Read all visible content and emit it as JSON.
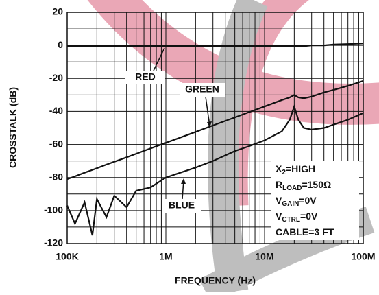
{
  "chart_data": {
    "type": "line",
    "xlabel": "FREQUENCY (Hz)",
    "ylabel": "CROSSTALK (dB)",
    "log_x": true,
    "grid": true,
    "xlim": [
      100000,
      100000000
    ],
    "xticks": [
      {
        "value": 100000,
        "label": "100K"
      },
      {
        "value": 1000000,
        "label": "1M"
      },
      {
        "value": 10000000,
        "label": "10M"
      },
      {
        "value": 100000000,
        "label": "100M"
      }
    ],
    "ylim": [
      -120,
      20
    ],
    "yticks": [
      -120,
      -100,
      -80,
      -60,
      -40,
      -20,
      0,
      20
    ],
    "x": [
      100000,
      120000,
      150000,
      180000,
      200000,
      250000,
      300000,
      400000,
      500000,
      700000,
      1000000,
      2000000,
      3000000,
      5000000,
      7000000,
      10000000,
      15000000,
      18000000,
      20000000,
      22000000,
      25000000,
      30000000,
      40000000,
      50000000,
      70000000,
      100000000
    ],
    "series": [
      {
        "name": "RED",
        "color": "#111111",
        "values": [
          -0.5,
          -0.5,
          -0.5,
          -0.5,
          -0.5,
          -0.5,
          -0.5,
          -0.5,
          -0.5,
          -0.5,
          -0.5,
          -0.5,
          -0.5,
          -0.5,
          -0.5,
          -0.5,
          -0.5,
          -0.5,
          -0.5,
          -0.5,
          -0.5,
          0,
          0,
          0.5,
          0.8,
          1.2
        ]
      },
      {
        "name": "GREEN",
        "color": "#111111",
        "values": [
          -81,
          -79.3,
          -77.1,
          -75.4,
          -74.4,
          -72.2,
          -70.5,
          -67.8,
          -65.6,
          -62.4,
          -59,
          -52.4,
          -48.5,
          -43.6,
          -40.4,
          -37,
          -33.1,
          -31.5,
          -30,
          -31.5,
          -32,
          -31,
          -28.5,
          -27,
          -24.5,
          -21.5
        ]
      },
      {
        "name": "BLUE",
        "color": "#111111",
        "values": [
          -97,
          -108,
          -95,
          -115,
          -93,
          -104,
          -91,
          -98,
          -88,
          -86,
          -80,
          -74,
          -70,
          -64,
          -61,
          -57.5,
          -52,
          -45,
          -37,
          -45,
          -50,
          -51,
          -50,
          -48,
          -45,
          -41
        ]
      }
    ],
    "conditions": [
      {
        "main": "X",
        "sub": "2",
        "rest": "=HIGH"
      },
      {
        "main": "R",
        "sub": "LOAD",
        "rest": "=150Ω"
      },
      {
        "main": "V",
        "sub": "GAIN",
        "rest": "=0V"
      },
      {
        "main": "V",
        "sub": "CTRL",
        "rest": "=0V"
      },
      {
        "main": "CABLE=3 FT",
        "sub": "",
        "rest": ""
      }
    ]
  }
}
